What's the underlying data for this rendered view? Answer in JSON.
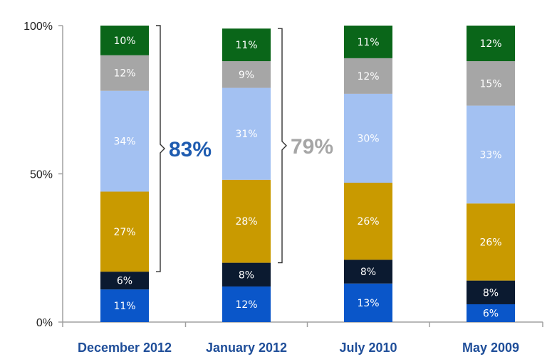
{
  "chart_data": {
    "type": "bar",
    "stacked": true,
    "categories": [
      "December 2012",
      "January 2012",
      "July 2010",
      "May 2009"
    ],
    "series": [
      {
        "color": "#0a56c9",
        "values": [
          11,
          12,
          13,
          6
        ],
        "labels": [
          "11%",
          "12%",
          "13%",
          "6%"
        ]
      },
      {
        "color": "#0b1a30",
        "values": [
          6,
          8,
          8,
          8
        ],
        "labels": [
          "6%",
          "8%",
          "8%",
          "8%"
        ]
      },
      {
        "color": "#c99a00",
        "values": [
          27,
          28,
          26,
          26
        ],
        "labels": [
          "27%",
          "28%",
          "26%",
          "26%"
        ]
      },
      {
        "color": "#a3c1f2",
        "values": [
          34,
          31,
          30,
          33
        ],
        "labels": [
          "34%",
          "31%",
          "30%",
          "33%"
        ]
      },
      {
        "color": "#a6a6a6",
        "values": [
          12,
          9,
          12,
          15
        ],
        "labels": [
          "12%",
          "9%",
          "12%",
          "15%"
        ]
      },
      {
        "color": "#0a6619",
        "values": [
          10,
          11,
          11,
          12
        ],
        "labels": [
          "10%",
          "11%",
          "11%",
          "12%"
        ]
      }
    ],
    "y_ticks": [
      "0%",
      "50%",
      "100%"
    ],
    "ylim": [
      0,
      100
    ],
    "grid": false,
    "legend": "none",
    "title": "",
    "xlabel": "",
    "ylabel": "",
    "annotations": [
      {
        "text": "83%",
        "category_index": 0,
        "from_series": 2,
        "to_series": 5,
        "color": "#1f5cb0"
      },
      {
        "text": "79%",
        "category_index": 1,
        "from_series": 2,
        "to_series": 5,
        "color": "#a6a6a6"
      }
    ]
  }
}
